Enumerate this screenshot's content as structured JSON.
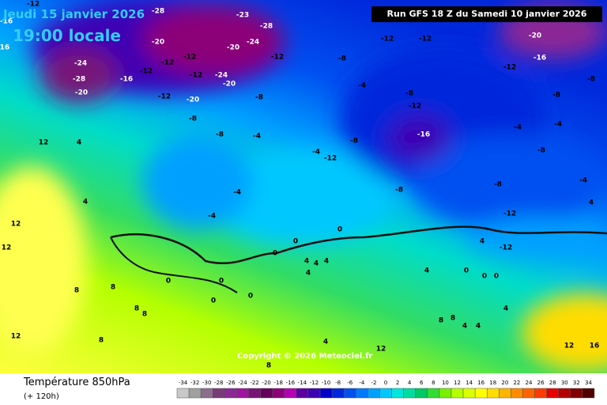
{
  "header": {
    "date": "Jeudi 15 janvier 2026",
    "time": "19:00 locale",
    "run": "Run GFS 18 Z du Samedi 10 janvier 2026"
  },
  "copyright": "Copyright © 2026 Meteociel.fr",
  "map_labels": [
    -12,
    -28,
    -28,
    -23,
    -16,
    -24,
    -20,
    -20,
    -16,
    -24,
    -28,
    -20,
    -16,
    -12,
    -12,
    -12,
    -12,
    -24,
    -20,
    -12,
    -20,
    -8,
    -12,
    -8,
    -12,
    -12,
    -8,
    -12,
    -16,
    -4,
    -8,
    -4,
    -8,
    12,
    4,
    4,
    -4,
    -4,
    -4,
    -12,
    -8,
    -8,
    -8,
    -4,
    -8,
    -4,
    -20,
    -16,
    -12,
    -8,
    -8,
    -4,
    -12,
    -12,
    4,
    12,
    12,
    0,
    0,
    0,
    0,
    0,
    0,
    0,
    4,
    4,
    4,
    4,
    0,
    0,
    4,
    8,
    8,
    8,
    8,
    8,
    12,
    8,
    8,
    4,
    4,
    8,
    4,
    12,
    12,
    16,
    4,
    4,
    0
  ],
  "legend": {
    "title": "Température 850hPa",
    "subtitle": "(+ 120h)",
    "ticks": [
      -34,
      -32,
      -30,
      -28,
      -26,
      -24,
      -22,
      -20,
      -18,
      -16,
      -14,
      -12,
      -10,
      -8,
      -6,
      -4,
      -2,
      0,
      2,
      4,
      6,
      8,
      10,
      12,
      14,
      16,
      18,
      20,
      22,
      24,
      26,
      28,
      30,
      32,
      34
    ],
    "colors": [
      "#c8c8c8",
      "#a0a0a0",
      "#8c6e8c",
      "#783c78",
      "#8c2896",
      "#a014a0",
      "#781478",
      "#64005a",
      "#8c0078",
      "#b400b4",
      "#5a00a0",
      "#3c00b4",
      "#0000c8",
      "#0028dc",
      "#0050f0",
      "#0078ff",
      "#00a0ff",
      "#00c8ff",
      "#00e6dc",
      "#00dca0",
      "#00c864",
      "#32dc32",
      "#78f000",
      "#b4ff00",
      "#dcff00",
      "#ffff00",
      "#ffdc00",
      "#ffb400",
      "#ff8c00",
      "#ff6400",
      "#ff3c00",
      "#e60000",
      "#b40000",
      "#820000",
      "#500000"
    ]
  }
}
